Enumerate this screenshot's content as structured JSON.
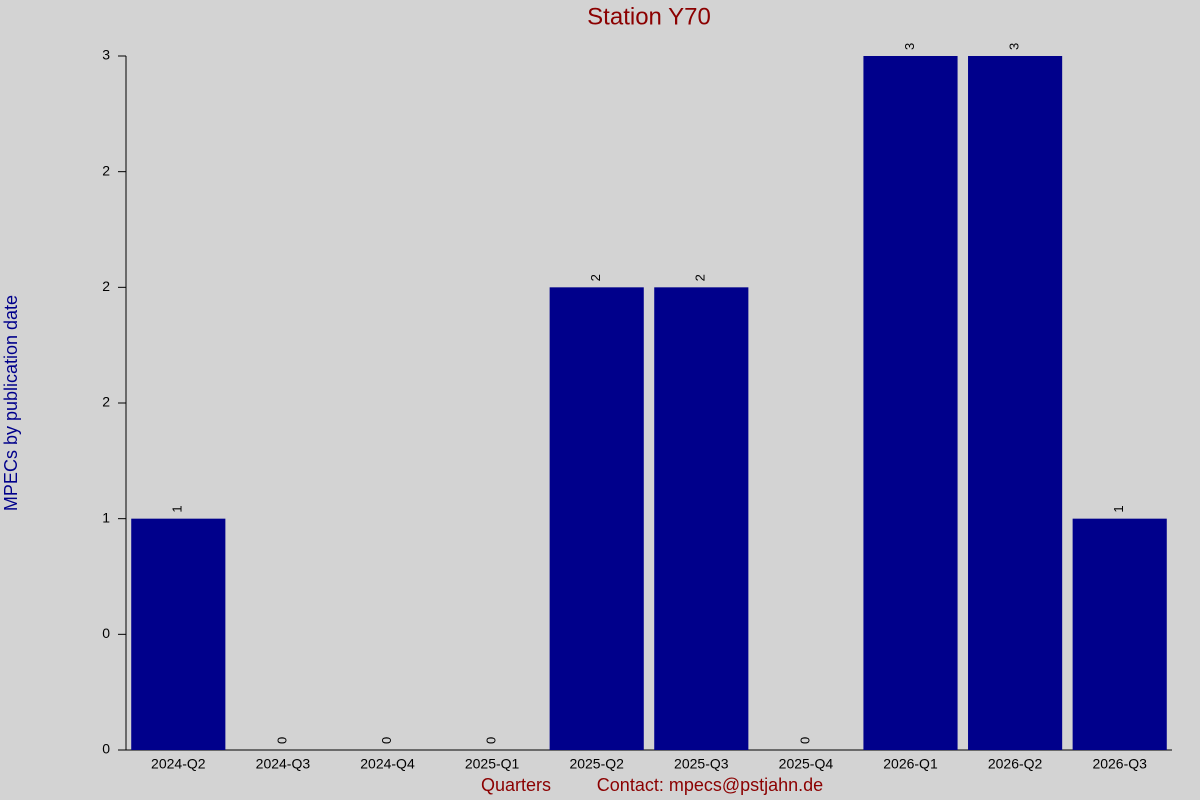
{
  "chart_data": {
    "type": "bar",
    "title": "Station Y70",
    "y_label": "MPECs by publication date",
    "x_label": "Quarters",
    "footer": "Contact: mpecs@pstjahn.de",
    "categories": [
      "2024-Q2",
      "2024-Q3",
      "2024-Q4",
      "2025-Q1",
      "2025-Q2",
      "2025-Q3",
      "2025-Q4",
      "2026-Q1",
      "2026-Q2",
      "2026-Q3"
    ],
    "values": [
      1,
      0,
      0,
      0,
      2,
      2,
      0,
      3,
      3,
      1
    ],
    "color": "#00008b",
    "ylim": [
      0,
      3
    ],
    "yticks": [
      0,
      {
        "value": 0.5,
        "label": "0"
      },
      1,
      {
        "value": 1.5,
        "label": "2"
      },
      2,
      {
        "value": 2.5,
        "label": "2"
      },
      3
    ],
    "grid": false
  }
}
